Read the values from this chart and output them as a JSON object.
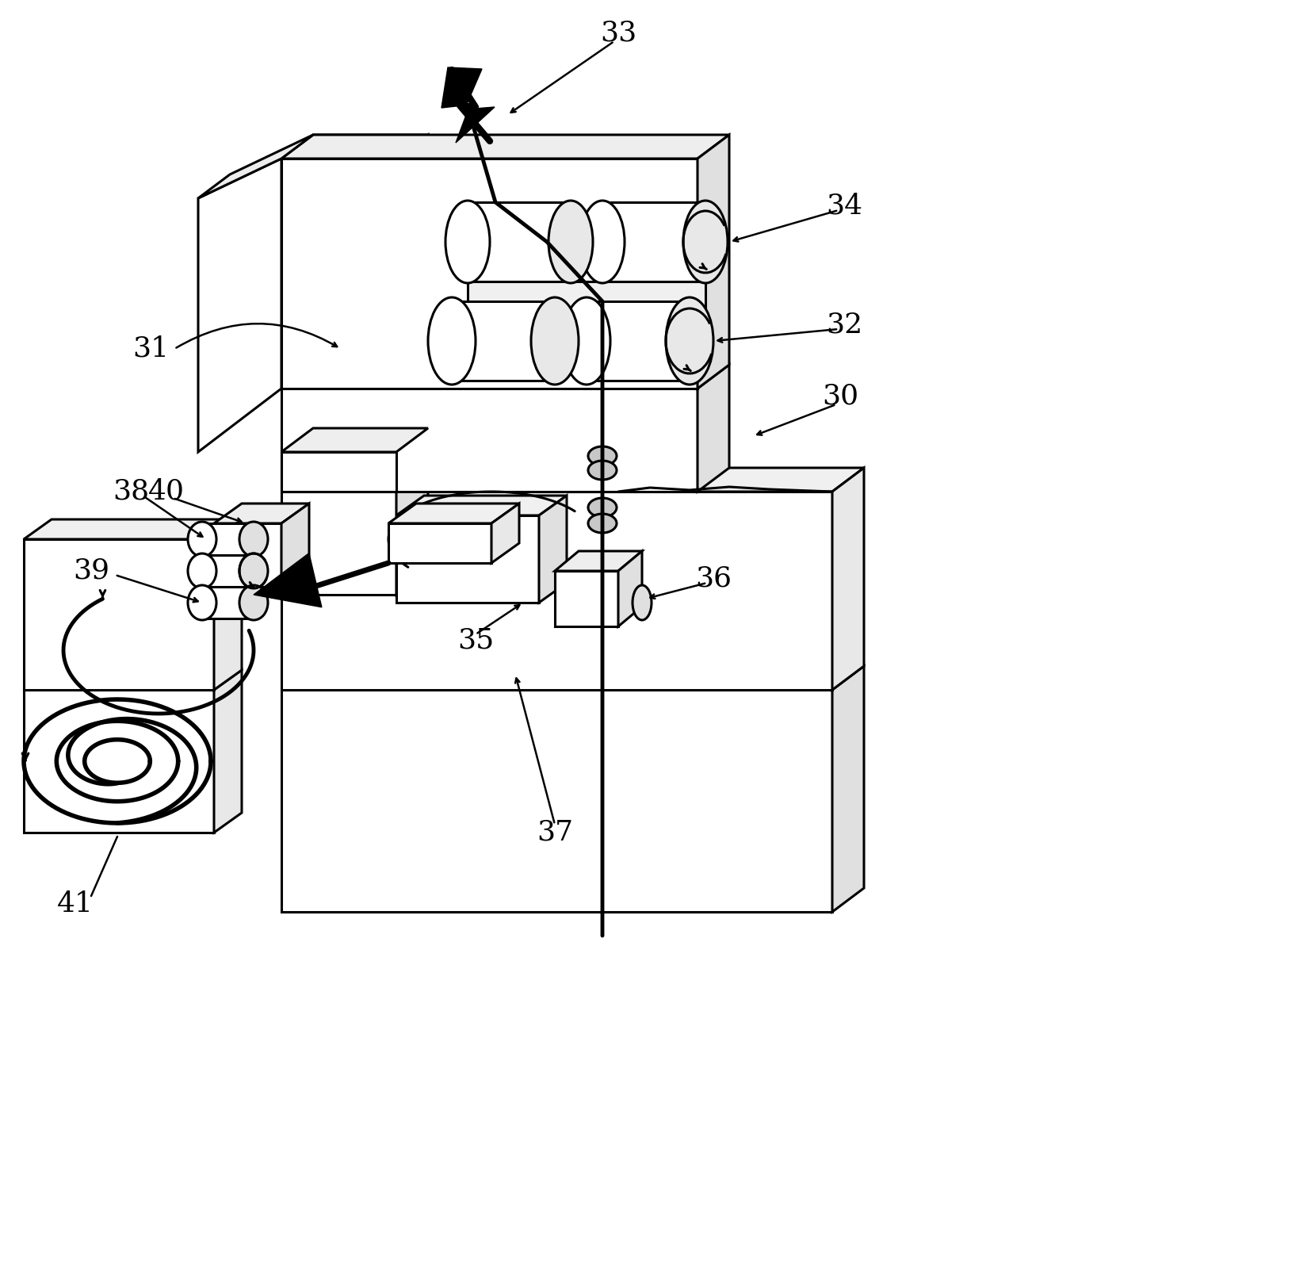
{
  "bg_color": "#ffffff",
  "line_color": "#000000",
  "figsize": [
    16.54,
    16.13
  ],
  "dpi": 100,
  "lw_thin": 1.8,
  "lw_med": 2.2,
  "lw_thick": 3.5,
  "lw_bold": 5.0
}
